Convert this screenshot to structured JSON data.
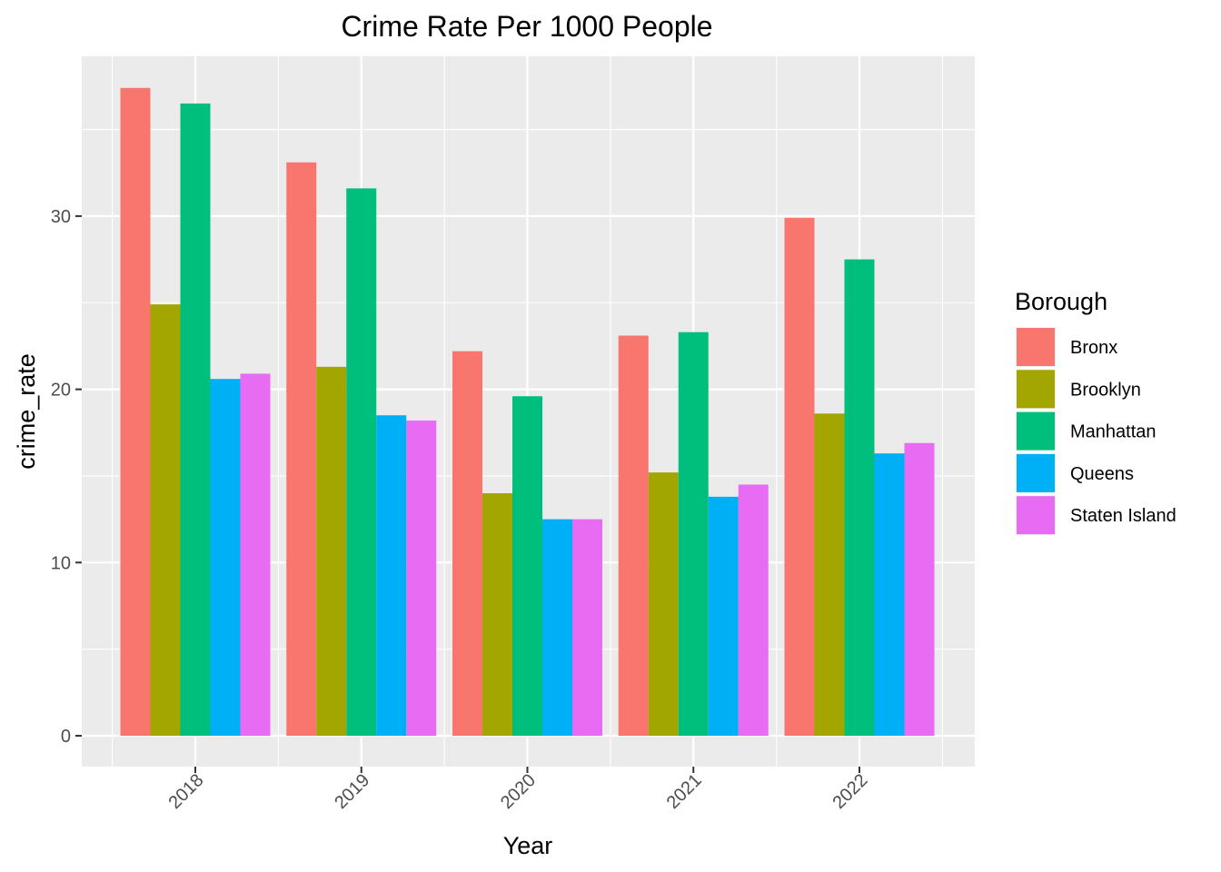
{
  "chart_data": {
    "type": "bar",
    "title": "Crime Rate Per 1000 People",
    "xlabel": "Year",
    "ylabel": "crime_rate",
    "categories": [
      "2018",
      "2019",
      "2020",
      "2021",
      "2022"
    ],
    "ylim": [
      -1.9,
      39.0
    ],
    "yticks": [
      0,
      10,
      20,
      30
    ],
    "grid": true,
    "legend": {
      "title": "Borough",
      "position": "right"
    },
    "series": [
      {
        "name": "Bronx",
        "color": "#F8766D",
        "values": [
          37.4,
          33.1,
          22.2,
          23.1,
          29.9
        ]
      },
      {
        "name": "Brooklyn",
        "color": "#A3A500",
        "values": [
          24.9,
          21.3,
          14.0,
          15.2,
          18.6
        ]
      },
      {
        "name": "Manhattan",
        "color": "#00BF7D",
        "values": [
          36.5,
          31.6,
          19.6,
          23.3,
          27.5
        ]
      },
      {
        "name": "Queens",
        "color": "#00B0F6",
        "values": [
          20.6,
          18.5,
          12.5,
          13.8,
          16.3
        ]
      },
      {
        "name": "Staten Island",
        "color": "#E76BF3",
        "values": [
          20.9,
          18.2,
          12.5,
          14.5,
          16.9
        ]
      }
    ]
  }
}
